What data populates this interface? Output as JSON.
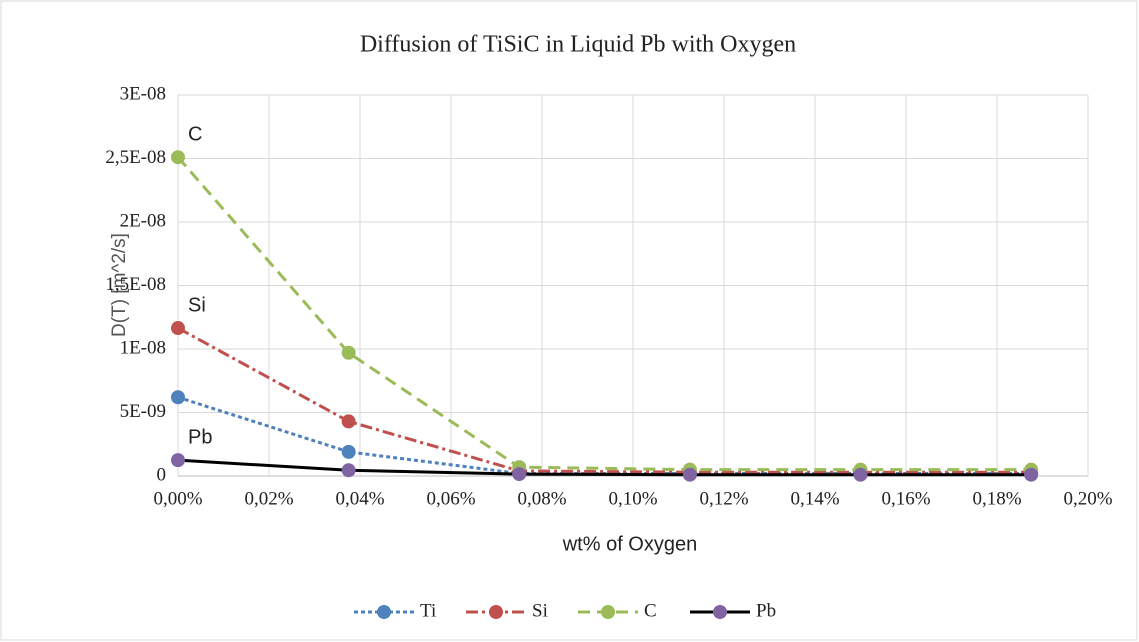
{
  "chart_data": {
    "type": "line",
    "title": "Diffusion of TiSiC in Liquid Pb with Oxygen",
    "xlabel": "wt% of Oxygen",
    "ylabel": "D(T) [m^2/s]",
    "x": [
      0,
      0.0375,
      0.075,
      0.1125,
      0.15,
      0.1875
    ],
    "series": [
      {
        "name": "Ti",
        "color": "#4f81bd",
        "dash": "4,3",
        "values": [
          6.2e-09,
          1.9e-09,
          2e-10,
          2e-10,
          2e-10,
          2e-10
        ]
      },
      {
        "name": "Si",
        "color": "#c0504d",
        "dash": "12,4,3,4",
        "values": [
          1.165e-08,
          4.3e-09,
          4e-10,
          3e-10,
          3e-10,
          3e-10
        ]
      },
      {
        "name": "C",
        "color": "#9bbb59",
        "dash": "12,7",
        "values": [
          2.51e-08,
          9.7e-09,
          7e-10,
          5e-10,
          5e-10,
          5e-10
        ]
      },
      {
        "name": "Pb",
        "color": "#8064a2",
        "line_color": "#000000",
        "values": [
          1.25e-09,
          4.5e-10,
          1.5e-10,
          1e-10,
          1e-10,
          1e-10
        ]
      }
    ],
    "annotations": [
      "C",
      "Si",
      "Pb"
    ],
    "xlim": [
      0,
      0.2
    ],
    "xticks": [
      {
        "value": 0,
        "label": "0,00%"
      },
      {
        "value": 0.02,
        "label": "0,02%"
      },
      {
        "value": 0.04,
        "label": "0,04%"
      },
      {
        "value": 0.06,
        "label": "0,06%"
      },
      {
        "value": 0.08,
        "label": "0,08%"
      },
      {
        "value": 0.1,
        "label": "0,10%"
      },
      {
        "value": 0.12,
        "label": "0,12%"
      },
      {
        "value": 0.14,
        "label": "0,14%"
      },
      {
        "value": 0.16,
        "label": "0,16%"
      },
      {
        "value": 0.18,
        "label": "0,18%"
      },
      {
        "value": 0.2,
        "label": "0,20%"
      }
    ],
    "ylim": [
      0,
      3e-08
    ],
    "yticks": [
      0,
      {
        "value": 5e-09,
        "label": "5E-09"
      },
      {
        "value": 1e-08,
        "label": "1E-08"
      },
      {
        "value": 1.5e-08,
        "label": "1,5E-08"
      },
      {
        "value": 2e-08,
        "label": "2E-08"
      },
      {
        "value": 2.5e-08,
        "label": "2,5E-08"
      },
      {
        "value": 3e-08,
        "label": "3E-08"
      }
    ],
    "grid": true,
    "legend": "bottom"
  }
}
